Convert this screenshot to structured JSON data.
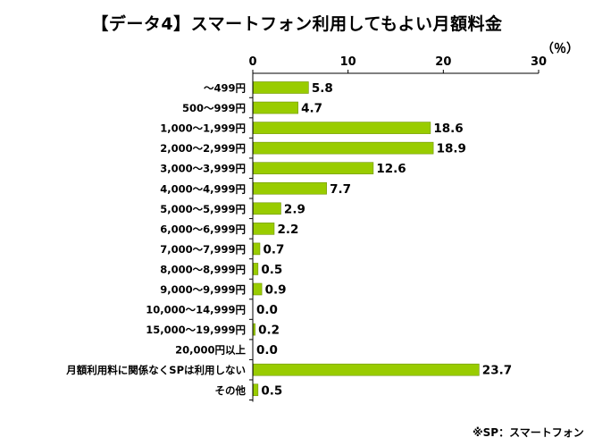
{
  "title": "【データ4】スマートフォン利用してもよい月額料金",
  "unit": "（％）",
  "footnote": "※SP：スマートフォン",
  "colors": {
    "bar_fill": "#99cc00",
    "bar_stroke": "#6f9400",
    "axis": "#000000",
    "grid": "#000000"
  },
  "chart_data": {
    "type": "bar",
    "orientation": "horizontal",
    "title": "【データ4】スマートフォン利用してもよい月額料金",
    "xlabel": "",
    "ylabel": "",
    "unit": "%",
    "xlim": [
      0,
      30
    ],
    "xticks": [
      0,
      10,
      20,
      30
    ],
    "grid": false,
    "legend": "none",
    "categories": [
      "～499円",
      "500～999円",
      "1,000～1,999円",
      "2,000～2,999円",
      "3,000～3,999円",
      "4,000～4,999円",
      "5,000～5,999円",
      "6,000～6,999円",
      "7,000～7,999円",
      "8,000～8,999円",
      "9,000～9,999円",
      "10,000～14,999円",
      "15,000～19,999円",
      "20,000円以上",
      "月額利用料に関係なくSPは利用しない",
      "その他"
    ],
    "values": [
      5.8,
      4.7,
      18.6,
      18.9,
      12.6,
      7.7,
      2.9,
      2.2,
      0.7,
      0.5,
      0.9,
      0.0,
      0.2,
      0.0,
      23.7,
      0.5
    ],
    "value_labels": [
      "5.8",
      "4.7",
      "18.6",
      "18.9",
      "12.6",
      "7.7",
      "2.9",
      "2.2",
      "0.7",
      "0.5",
      "0.9",
      "0.0",
      "0.2",
      "0.0",
      "23.7",
      "0.5"
    ],
    "tick_labels": [
      "0",
      "10",
      "20",
      "30"
    ]
  }
}
